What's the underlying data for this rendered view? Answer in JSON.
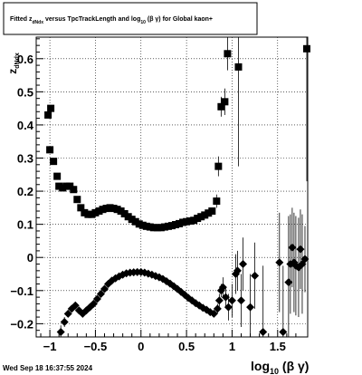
{
  "title": {
    "prefix": "Fitted  z",
    "sub": "dNdx",
    "middle": "  versus TpcTrackLength and log",
    "sub2": "10",
    "suffix": " (β  γ) for Global kaon+"
  },
  "footer": {
    "timestamp": "Wed Sep 18 16:37:55 2024"
  },
  "chart_data": {
    "type": "scatter",
    "title": "Fitted z_dNdx versus TpcTrackLength and log10(β γ) for Global kaon+",
    "xlabel": "log10(β γ)",
    "ylabel": "z_dNdx",
    "xlim": [
      -1.15,
      1.83
    ],
    "ylim": [
      -0.24,
      0.665
    ],
    "grid": true,
    "x_ticks": [
      {
        "v": -1,
        "label": "−1"
      },
      {
        "v": -0.5,
        "label": "−0.5"
      },
      {
        "v": 0,
        "label": "0"
      },
      {
        "v": 0.5,
        "label": "0.5"
      },
      {
        "v": 1,
        "label": "1"
      },
      {
        "v": 1.5,
        "label": "1.5"
      }
    ],
    "y_ticks": [
      {
        "v": -0.2,
        "label": "−0.2"
      },
      {
        "v": -0.1,
        "label": "−0.1"
      },
      {
        "v": 0,
        "label": "0"
      },
      {
        "v": 0.1,
        "label": "0.1"
      },
      {
        "v": 0.2,
        "label": "0.2"
      },
      {
        "v": 0.3,
        "label": "0.3"
      },
      {
        "v": 0.4,
        "label": "0.4"
      },
      {
        "v": 0.5,
        "label": "0.5"
      },
      {
        "v": 0.6,
        "label": "0.6"
      }
    ],
    "series": [
      {
        "marker": "square",
        "color": "#000000",
        "points": [
          [
            -1.02,
            0.43,
            0.01
          ],
          [
            -0.99,
            0.45,
            0.01
          ],
          [
            -1.0,
            0.325,
            0.01
          ],
          [
            -0.96,
            0.29,
            0.01
          ],
          [
            -0.92,
            0.245,
            0.01
          ],
          [
            -0.9,
            0.215,
            0.01
          ],
          [
            -0.86,
            0.21,
            0.01
          ],
          [
            -0.82,
            0.215,
            0.01
          ],
          [
            -0.78,
            0.215,
            0.01
          ],
          [
            -0.74,
            0.205,
            0.01
          ],
          [
            -0.7,
            0.175,
            0.01
          ],
          [
            -0.66,
            0.15,
            0.01
          ],
          [
            -0.62,
            0.135,
            0.01
          ],
          [
            -0.58,
            0.13,
            0.01
          ],
          [
            -0.54,
            0.13,
            0.01
          ],
          [
            -0.5,
            0.135,
            0.01
          ],
          [
            -0.46,
            0.14,
            0.01
          ],
          [
            -0.42,
            0.145,
            0.01
          ],
          [
            -0.38,
            0.148,
            0.01
          ],
          [
            -0.34,
            0.15,
            0.01
          ],
          [
            -0.3,
            0.148,
            0.01
          ],
          [
            -0.26,
            0.145,
            0.01
          ],
          [
            -0.22,
            0.14,
            0.01
          ],
          [
            -0.18,
            0.132,
            0.01
          ],
          [
            -0.14,
            0.123,
            0.01
          ],
          [
            -0.1,
            0.115,
            0.01
          ],
          [
            -0.06,
            0.108,
            0.01
          ],
          [
            -0.02,
            0.101,
            0.01
          ],
          [
            0.02,
            0.097,
            0.01
          ],
          [
            0.06,
            0.094,
            0.01
          ],
          [
            0.1,
            0.092,
            0.01
          ],
          [
            0.14,
            0.09,
            0.01
          ],
          [
            0.18,
            0.09,
            0.01
          ],
          [
            0.22,
            0.09,
            0.01
          ],
          [
            0.26,
            0.092,
            0.01
          ],
          [
            0.3,
            0.094,
            0.01
          ],
          [
            0.34,
            0.096,
            0.01
          ],
          [
            0.38,
            0.099,
            0.01
          ],
          [
            0.42,
            0.102,
            0.01
          ],
          [
            0.46,
            0.106,
            0.01
          ],
          [
            0.5,
            0.108,
            0.01
          ],
          [
            0.54,
            0.11,
            0.01
          ],
          [
            0.58,
            0.112,
            0.01
          ],
          [
            0.62,
            0.118,
            0.01
          ],
          [
            0.66,
            0.123,
            0.01
          ],
          [
            0.7,
            0.128,
            0.01
          ],
          [
            0.74,
            0.134,
            0.01
          ],
          [
            0.78,
            0.14,
            0.01
          ],
          [
            0.83,
            0.17,
            0.02
          ],
          [
            0.85,
            0.275,
            0.03
          ],
          [
            0.88,
            0.455,
            0.03
          ],
          [
            0.92,
            0.47,
            0.04
          ],
          [
            0.95,
            0.615,
            0.05
          ],
          [
            1.07,
            0.575,
            0.3
          ],
          [
            1.82,
            0.63,
            0.4
          ]
        ]
      },
      {
        "marker": "diamond",
        "color": "#000000",
        "points": [
          [
            -0.88,
            -0.225,
            0.02
          ],
          [
            -0.84,
            -0.195,
            0.015
          ],
          [
            -0.8,
            -0.17,
            0.01
          ],
          [
            -0.76,
            -0.155,
            0.01
          ],
          [
            -0.72,
            -0.145,
            0.01
          ],
          [
            -0.68,
            -0.16,
            0.01
          ],
          [
            -0.64,
            -0.17,
            0.01
          ],
          [
            -0.6,
            -0.16,
            0.01
          ],
          [
            -0.56,
            -0.15,
            0.01
          ],
          [
            -0.52,
            -0.14,
            0.01
          ],
          [
            -0.48,
            -0.125,
            0.01
          ],
          [
            -0.44,
            -0.11,
            0.01
          ],
          [
            -0.4,
            -0.095,
            0.01
          ],
          [
            -0.36,
            -0.08,
            0.01
          ],
          [
            -0.32,
            -0.07,
            0.01
          ],
          [
            -0.28,
            -0.063,
            0.01
          ],
          [
            -0.24,
            -0.057,
            0.01
          ],
          [
            -0.2,
            -0.052,
            0.01
          ],
          [
            -0.16,
            -0.048,
            0.01
          ],
          [
            -0.12,
            -0.046,
            0.01
          ],
          [
            -0.08,
            -0.045,
            0.01
          ],
          [
            -0.04,
            -0.044,
            0.01
          ],
          [
            0.0,
            -0.044,
            0.01
          ],
          [
            0.04,
            -0.046,
            0.01
          ],
          [
            0.08,
            -0.049,
            0.01
          ],
          [
            0.12,
            -0.052,
            0.01
          ],
          [
            0.16,
            -0.056,
            0.01
          ],
          [
            0.2,
            -0.06,
            0.01
          ],
          [
            0.24,
            -0.065,
            0.01
          ],
          [
            0.28,
            -0.072,
            0.01
          ],
          [
            0.32,
            -0.079,
            0.01
          ],
          [
            0.36,
            -0.087,
            0.01
          ],
          [
            0.4,
            -0.095,
            0.01
          ],
          [
            0.44,
            -0.104,
            0.01
          ],
          [
            0.48,
            -0.113,
            0.01
          ],
          [
            0.52,
            -0.122,
            0.01
          ],
          [
            0.56,
            -0.13,
            0.01
          ],
          [
            0.6,
            -0.138,
            0.01
          ],
          [
            0.64,
            -0.145,
            0.01
          ],
          [
            0.68,
            -0.152,
            0.01
          ],
          [
            0.72,
            -0.158,
            0.01
          ],
          [
            0.76,
            -0.165,
            0.01
          ],
          [
            0.8,
            -0.17,
            0.01
          ],
          [
            0.84,
            -0.155,
            0.015
          ],
          [
            0.86,
            -0.13,
            0.02
          ],
          [
            0.88,
            -0.1,
            0.02
          ],
          [
            0.9,
            -0.09,
            0.03
          ],
          [
            0.93,
            -0.12,
            0.03
          ],
          [
            0.96,
            -0.15,
            0.04
          ],
          [
            1.0,
            -0.13,
            0.05
          ],
          [
            1.04,
            -0.05,
            0.06
          ],
          [
            1.06,
            -0.04,
            0.06
          ],
          [
            1.1,
            -0.13,
            0.08
          ],
          [
            1.12,
            -0.02,
            0.08
          ],
          [
            1.2,
            -0.15,
            0.1
          ],
          [
            1.25,
            -0.055,
            0.1
          ],
          [
            1.34,
            -0.225,
            0.2
          ],
          [
            1.52,
            -0.015,
            0.15
          ],
          [
            1.56,
            -0.225,
            0.2
          ],
          [
            1.62,
            -0.075,
            0.2
          ],
          [
            1.64,
            -0.02,
            0.15
          ],
          [
            1.66,
            0.03,
            0.12
          ],
          [
            1.68,
            -0.015,
            0.15
          ],
          [
            1.7,
            -0.025,
            0.15
          ],
          [
            1.73,
            -0.03,
            0.15
          ],
          [
            1.75,
            0.025,
            0.12
          ],
          [
            1.77,
            -0.02,
            0.15
          ],
          [
            1.8,
            -0.005,
            0.1
          ]
        ]
      }
    ]
  }
}
